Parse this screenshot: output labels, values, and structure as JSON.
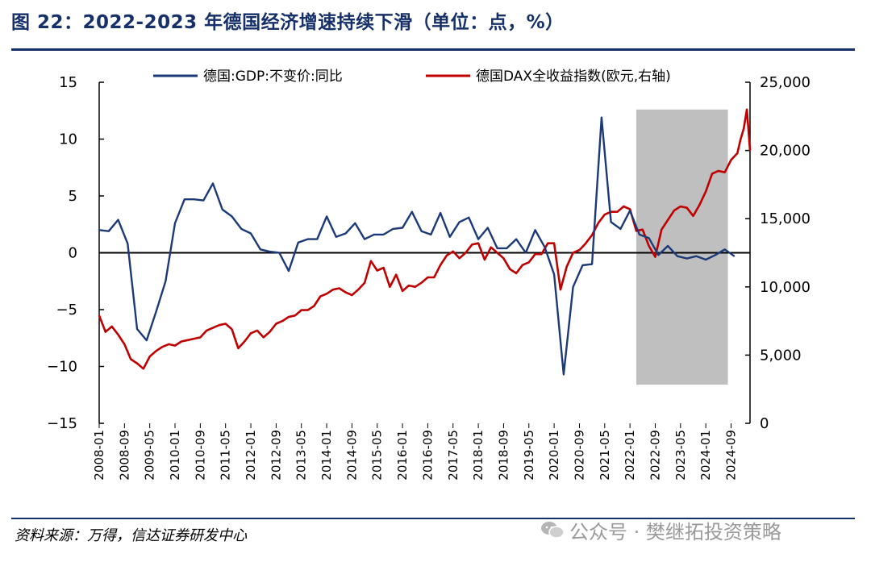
{
  "header": {
    "title": "图 22：2022-2023 年德国经济增速持续下滑（单位：点，%）"
  },
  "footer": {
    "source": "资料来源：万得，信达证券研发中心",
    "watermark": "公众号 · 樊继拓投资策略",
    "watermark_icon": "wechat-icon"
  },
  "colors": {
    "gdp": "#1c3a78",
    "dax": "#c00000",
    "shade": "#bfbfbf",
    "brand": "#16306a"
  },
  "chart_data": {
    "type": "line",
    "series": [
      {
        "name": "德国:GDP:不变价:同比",
        "axis": "left",
        "x": [
          "2008-01",
          "2008-04",
          "2008-07",
          "2008-10",
          "2009-01",
          "2009-04",
          "2009-07",
          "2009-10",
          "2010-01",
          "2010-04",
          "2010-07",
          "2010-10",
          "2011-01",
          "2011-04",
          "2011-07",
          "2011-10",
          "2012-01",
          "2012-04",
          "2012-07",
          "2012-10",
          "2013-01",
          "2013-04",
          "2013-07",
          "2013-10",
          "2014-01",
          "2014-04",
          "2014-07",
          "2014-10",
          "2015-01",
          "2015-04",
          "2015-07",
          "2015-10",
          "2016-01",
          "2016-04",
          "2016-07",
          "2016-10",
          "2017-01",
          "2017-04",
          "2017-07",
          "2017-10",
          "2018-01",
          "2018-04",
          "2018-07",
          "2018-10",
          "2019-01",
          "2019-04",
          "2019-07",
          "2019-10",
          "2020-01",
          "2020-04",
          "2020-07",
          "2020-10",
          "2021-01",
          "2021-04",
          "2021-07",
          "2021-10",
          "2022-01",
          "2022-04",
          "2022-07",
          "2022-10",
          "2023-01",
          "2023-04",
          "2023-07",
          "2023-10",
          "2024-01",
          "2024-04",
          "2024-07",
          "2024-10"
        ],
        "values": [
          2.0,
          1.9,
          2.9,
          0.8,
          -6.7,
          -7.7,
          -5.2,
          -2.5,
          2.6,
          4.7,
          4.7,
          4.6,
          6.1,
          3.8,
          3.2,
          2.1,
          1.7,
          0.3,
          0.1,
          0.0,
          -1.6,
          0.9,
          1.2,
          1.2,
          3.2,
          1.4,
          1.7,
          2.6,
          1.2,
          1.6,
          1.6,
          2.1,
          2.2,
          3.6,
          1.9,
          1.6,
          3.5,
          1.4,
          2.7,
          3.1,
          1.2,
          2.2,
          0.4,
          0.4,
          1.2,
          0.0,
          2.0,
          0.5,
          -1.9,
          -10.7,
          -3.0,
          -1.1,
          -1.0,
          11.9,
          2.7,
          2.1,
          3.7,
          1.6,
          1.3,
          -0.2,
          0.6,
          -0.3,
          -0.5,
          -0.3,
          -0.6,
          -0.2,
          0.3,
          -0.3
        ]
      },
      {
        "name": "德国DAX全收益指数(欧元,右轴)",
        "axis": "right",
        "x": [
          "2008-01",
          "2008-03",
          "2008-05",
          "2008-07",
          "2008-09",
          "2008-11",
          "2009-01",
          "2009-03",
          "2009-05",
          "2009-07",
          "2009-09",
          "2009-11",
          "2010-01",
          "2010-03",
          "2010-05",
          "2010-07",
          "2010-09",
          "2010-11",
          "2011-01",
          "2011-03",
          "2011-05",
          "2011-07",
          "2011-09",
          "2011-11",
          "2012-01",
          "2012-03",
          "2012-05",
          "2012-07",
          "2012-09",
          "2012-11",
          "2013-01",
          "2013-03",
          "2013-05",
          "2013-07",
          "2013-09",
          "2013-11",
          "2014-01",
          "2014-03",
          "2014-05",
          "2014-07",
          "2014-09",
          "2014-11",
          "2015-01",
          "2015-03",
          "2015-05",
          "2015-07",
          "2015-09",
          "2015-11",
          "2016-01",
          "2016-03",
          "2016-05",
          "2016-07",
          "2016-09",
          "2016-11",
          "2017-01",
          "2017-03",
          "2017-05",
          "2017-07",
          "2017-09",
          "2017-11",
          "2018-01",
          "2018-03",
          "2018-05",
          "2018-07",
          "2018-09",
          "2018-11",
          "2019-01",
          "2019-03",
          "2019-05",
          "2019-07",
          "2019-09",
          "2019-11",
          "2020-01",
          "2020-03",
          "2020-05",
          "2020-07",
          "2020-09",
          "2020-11",
          "2021-01",
          "2021-03",
          "2021-05",
          "2021-07",
          "2021-09",
          "2021-11",
          "2022-01",
          "2022-03",
          "2022-05",
          "2022-07",
          "2022-09",
          "2022-11",
          "2023-01",
          "2023-03",
          "2023-05",
          "2023-07",
          "2023-09",
          "2023-11",
          "2024-01",
          "2024-03",
          "2024-05",
          "2024-07",
          "2024-09",
          "2024-11",
          "2024-12",
          "2025-01",
          "2025-02",
          "2025-03"
        ],
        "values": [
          7900,
          6700,
          7100,
          6500,
          5800,
          4700,
          4400,
          4000,
          4900,
          5300,
          5600,
          5800,
          5700,
          6000,
          6100,
          6200,
          6300,
          6800,
          7000,
          7200,
          7300,
          6900,
          5500,
          6000,
          6600,
          6800,
          6300,
          6700,
          7300,
          7500,
          7800,
          7900,
          8300,
          8300,
          8600,
          9300,
          9500,
          9800,
          9900,
          9600,
          9400,
          9800,
          10300,
          11900,
          11200,
          11400,
          10000,
          10900,
          9700,
          10100,
          10000,
          10300,
          10700,
          10700,
          11600,
          12300,
          12600,
          12100,
          12500,
          13100,
          13200,
          12000,
          12900,
          12500,
          12100,
          11300,
          11000,
          11600,
          11800,
          12400,
          12400,
          13200,
          13200,
          9800,
          11500,
          12500,
          12700,
          13200,
          13800,
          14700,
          15300,
          15500,
          15500,
          15900,
          15700,
          14100,
          14200,
          13000,
          12200,
          14200,
          14900,
          15600,
          15900,
          15800,
          15200,
          16000,
          17000,
          18300,
          18500,
          18400,
          19300,
          19800,
          20800,
          21600,
          23000,
          20000
        ]
      }
    ],
    "left_axis": {
      "ylim": [
        -15,
        15
      ],
      "ticks": [
        -15,
        -10,
        -5,
        0,
        5,
        10,
        15
      ],
      "tick_labels": [
        "−15",
        "−10",
        "−5",
        "0",
        "5",
        "10",
        "15"
      ]
    },
    "right_axis": {
      "ylim": [
        0,
        25000
      ],
      "ticks": [
        0,
        5000,
        10000,
        15000,
        20000,
        25000
      ],
      "tick_labels": [
        "0",
        "5,000",
        "10,000",
        "15,000",
        "20,000",
        "25,000"
      ]
    },
    "x_axis": {
      "tick_labels": [
        "2008-01",
        "2008-09",
        "2009-05",
        "2010-01",
        "2010-09",
        "2011-05",
        "2012-01",
        "2012-09",
        "2013-05",
        "2014-01",
        "2014-09",
        "2015-05",
        "2016-01",
        "2016-09",
        "2017-05",
        "2018-01",
        "2018-09",
        "2019-05",
        "2020-01",
        "2020-09",
        "2021-05",
        "2022-01",
        "2022-09",
        "2023-05",
        "2024-01",
        "2024-09"
      ],
      "range": [
        "2008-01",
        "2025-03"
      ]
    },
    "shaded_region": {
      "start": "2022-03",
      "end": "2024-08",
      "y_range_left": [
        -11.6,
        12.6
      ]
    },
    "zero_line": true,
    "grid": false,
    "legend_position": "top"
  }
}
